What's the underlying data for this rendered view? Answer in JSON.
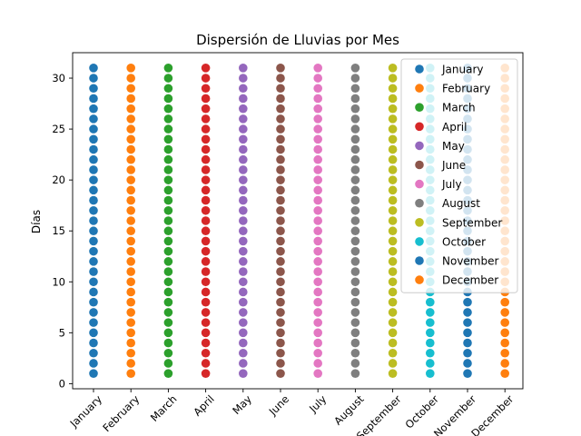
{
  "chart_data": {
    "type": "scatter",
    "title": "Dispersión de Lluvias por Mes",
    "xlabel": "",
    "ylabel": "Días",
    "categories": [
      "January",
      "February",
      "March",
      "April",
      "May",
      "June",
      "July",
      "August",
      "September",
      "October",
      "November",
      "December"
    ],
    "y_values": [
      1,
      2,
      3,
      4,
      5,
      6,
      7,
      8,
      9,
      10,
      11,
      12,
      13,
      14,
      15,
      16,
      17,
      18,
      19,
      20,
      21,
      22,
      23,
      24,
      25,
      26,
      27,
      28,
      29,
      30,
      31
    ],
    "yticks": [
      0,
      5,
      10,
      15,
      20,
      25,
      30
    ],
    "ylim": [
      -0.5,
      32.5
    ],
    "grid": false,
    "legend_position": "top-right",
    "series": [
      {
        "name": "January",
        "category": "January",
        "color": "#1f77b4"
      },
      {
        "name": "February",
        "category": "February",
        "color": "#ff7f0e"
      },
      {
        "name": "March",
        "category": "March",
        "color": "#2ca02c"
      },
      {
        "name": "April",
        "category": "April",
        "color": "#d62728"
      },
      {
        "name": "May",
        "category": "May",
        "color": "#9467bd"
      },
      {
        "name": "June",
        "category": "June",
        "color": "#8c564b"
      },
      {
        "name": "July",
        "category": "July",
        "color": "#e377c2"
      },
      {
        "name": "August",
        "category": "August",
        "color": "#7f7f7f"
      },
      {
        "name": "September",
        "category": "September",
        "color": "#bcbd22"
      },
      {
        "name": "October",
        "category": "October",
        "color": "#17becf"
      },
      {
        "name": "November",
        "category": "November",
        "color": "#1f77b4"
      },
      {
        "name": "December",
        "category": "December",
        "color": "#ff7f0e"
      }
    ]
  }
}
